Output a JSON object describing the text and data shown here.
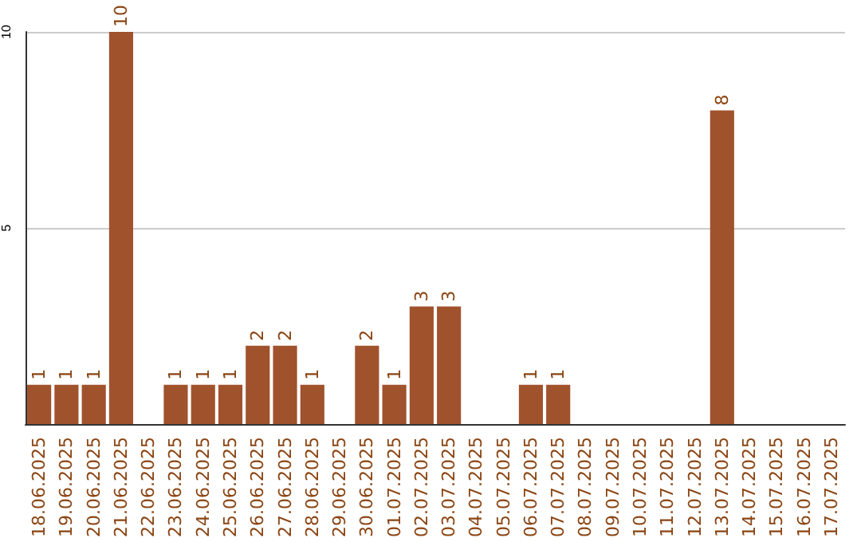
{
  "chart_data": {
    "type": "bar",
    "categories": [
      "18.06.2025",
      "19.06.2025",
      "20.06.2025",
      "21.06.2025",
      "22.06.2025",
      "23.06.2025",
      "24.06.2025",
      "25.06.2025",
      "26.06.2025",
      "27.06.2025",
      "28.06.2025",
      "29.06.2025",
      "30.06.2025",
      "01.07.2025",
      "02.07.2025",
      "03.07.2025",
      "04.07.2025",
      "05.07.2025",
      "06.07.2025",
      "07.07.2025",
      "08.07.2025",
      "09.07.2025",
      "10.07.2025",
      "11.07.2025",
      "12.07.2025",
      "13.07.2025",
      "14.07.2025",
      "15.07.2025",
      "16.07.2025",
      "17.07.2025"
    ],
    "values": [
      1,
      1,
      1,
      10,
      0,
      1,
      1,
      1,
      2,
      2,
      1,
      0,
      2,
      1,
      3,
      3,
      0,
      0,
      1,
      1,
      0,
      0,
      0,
      0,
      0,
      8,
      0,
      0,
      0,
      0
    ],
    "value_labels": [
      "1",
      "1",
      "1",
      "10",
      null,
      "1",
      "1",
      "1",
      "2",
      "2",
      "1",
      null,
      "2",
      "1",
      "3",
      "3",
      null,
      null,
      "1",
      "1",
      null,
      null,
      null,
      null,
      null,
      "8",
      null,
      null,
      null,
      null
    ],
    "color": "#a0522d",
    "ylim": [
      0,
      10
    ],
    "yticks": [
      {
        "value": 0,
        "label": null
      },
      5,
      10
    ],
    "grid": "y"
  }
}
